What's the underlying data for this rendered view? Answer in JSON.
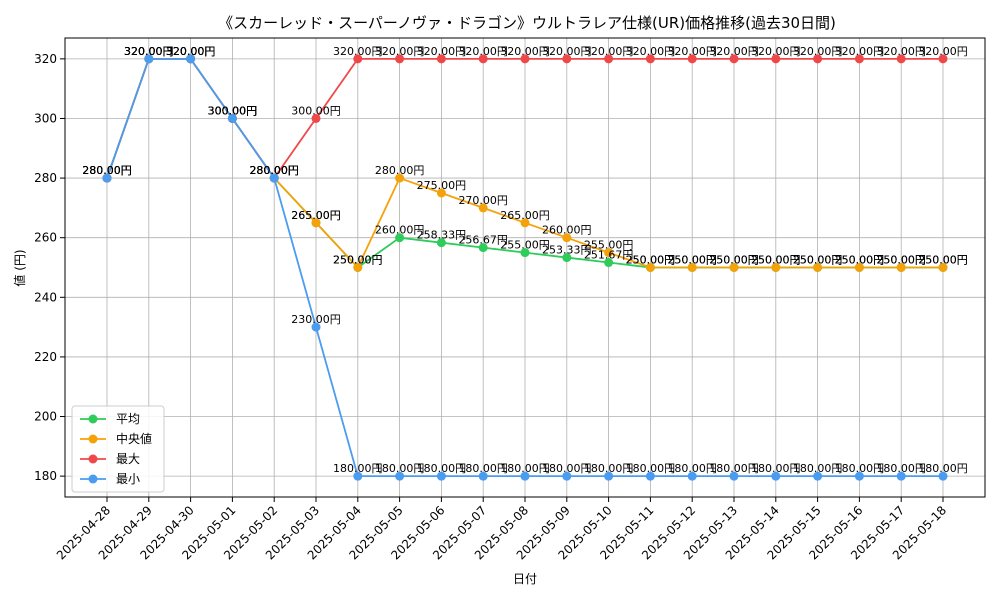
{
  "chart_data": {
    "type": "line",
    "title": "《スカーレッド・スーパーノヴァ・ドラゴン》ウルトラレア仕様(UR)価格推移(過去30日間)",
    "xlabel": "日付",
    "ylabel": "値 (円)",
    "ylim": [
      173,
      327
    ],
    "yticks": [
      180,
      200,
      220,
      240,
      260,
      280,
      300,
      320
    ],
    "grid": true,
    "legend_position": "lower-left",
    "categories": [
      "2025-04-28",
      "2025-04-29",
      "2025-04-30",
      "2025-05-01",
      "2025-05-02",
      "2025-05-03",
      "2025-05-04",
      "2025-05-05",
      "2025-05-06",
      "2025-05-07",
      "2025-05-08",
      "2025-05-09",
      "2025-05-10",
      "2025-05-11",
      "2025-05-12",
      "2025-05-13",
      "2025-05-14",
      "2025-05-15",
      "2025-05-16",
      "2025-05-17",
      "2025-05-18"
    ],
    "series": [
      {
        "name": "平均",
        "color": "#2ecc5a",
        "values": [
          280,
          320,
          320,
          300,
          280,
          265,
          250,
          260,
          258.33,
          256.67,
          255,
          253.33,
          251.67,
          250,
          250,
          250,
          250,
          250,
          250,
          250,
          250
        ],
        "labels": [
          "280.00円",
          "320.00円",
          "320.00円",
          "300.00円",
          "280.00円",
          "265.00円",
          "250.00円",
          "260.00円",
          "258.33円",
          "256.67円",
          "255.00円",
          "253.33円",
          "251.67円",
          "250.00円",
          "250.00円",
          "250.00円",
          "250.00円",
          "250.00円",
          "250.00円",
          "250.00円",
          "250.00円"
        ]
      },
      {
        "name": "中央値",
        "color": "#f5a20a",
        "values": [
          280,
          320,
          320,
          300,
          280,
          265,
          250,
          280,
          275,
          270,
          265,
          260,
          255,
          250,
          250,
          250,
          250,
          250,
          250,
          250,
          250
        ],
        "labels": [
          "280.00円",
          "320.00円",
          "320.00円",
          "300.00円",
          "280.00円",
          "265.00円",
          "250.00円",
          "280.00円",
          "275.00円",
          "270.00円",
          "265.00円",
          "260.00円",
          "255.00円",
          "250.00円",
          "250.00円",
          "250.00円",
          "250.00円",
          "250.00円",
          "250.00円",
          "250.00円",
          "250.00円"
        ]
      },
      {
        "name": "最大",
        "color": "#f04848",
        "values": [
          280,
          320,
          320,
          300,
          280,
          300,
          320,
          320,
          320,
          320,
          320,
          320,
          320,
          320,
          320,
          320,
          320,
          320,
          320,
          320,
          320
        ],
        "labels": [
          "280.00円",
          "320.00円",
          "320.00円",
          "300.00円",
          "280.00円",
          "300.00円",
          "320.00円",
          "320.00円",
          "320.00円",
          "320.00円",
          "320.00円",
          "320.00円",
          "320.00円",
          "320.00円",
          "320.00円",
          "320.00円",
          "320.00円",
          "320.00円",
          "320.00円",
          "320.00円",
          "320.00円"
        ]
      },
      {
        "name": "最小",
        "color": "#4a9cf0",
        "values": [
          280,
          320,
          320,
          300,
          280,
          230,
          180,
          180,
          180,
          180,
          180,
          180,
          180,
          180,
          180,
          180,
          180,
          180,
          180,
          180,
          180
        ],
        "labels": [
          "280.00円",
          "320.00円",
          "320.00円",
          "300.00円",
          "280.00円",
          "230.00円",
          "180.00円",
          "180.00円",
          "180.00円",
          "180.00円",
          "180.00円",
          "180.00円",
          "180.00円",
          "180.00円",
          "180.00円",
          "180.00円",
          "180.00円",
          "180.00円",
          "180.00円",
          "180.00円",
          "180.00円"
        ]
      }
    ]
  }
}
